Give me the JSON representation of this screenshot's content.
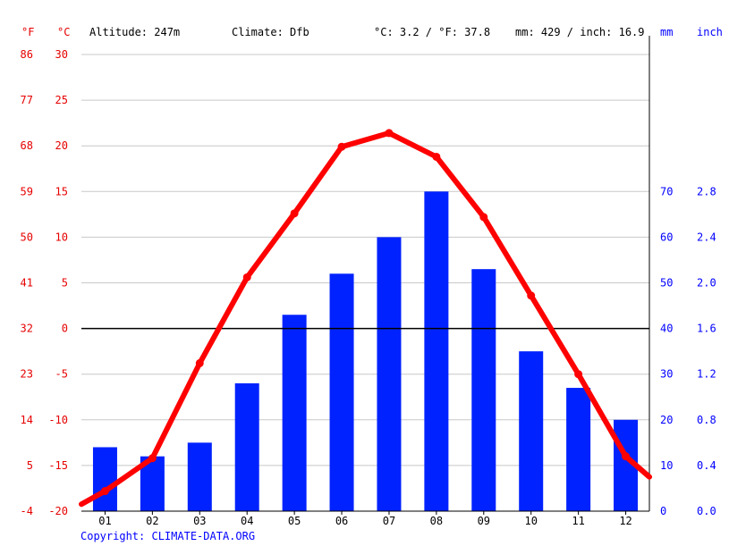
{
  "header": {
    "unit_f": "°F",
    "unit_c": "°C",
    "altitude": "Altitude: 247m",
    "climate": "Climate: Dfb",
    "avg_temp": "°C: 3.2 / °F: 37.8",
    "precip_total": "mm: 429 / inch: 16.9",
    "unit_mm": "mm",
    "unit_inch": "inch"
  },
  "copyright": "Copyright: CLIMATE-DATA.ORG",
  "colors": {
    "temperature": "#ff0000",
    "precipitation": "#0022ff",
    "left_axis": "#e60000",
    "right_axis": "#0000ff"
  },
  "chart_data": {
    "type": "bar",
    "categories": [
      "01",
      "02",
      "03",
      "04",
      "05",
      "06",
      "07",
      "08",
      "09",
      "10",
      "11",
      "12"
    ],
    "series": [
      {
        "type": "bar",
        "axis": "precipitation_mm",
        "values": [
          14,
          12,
          15,
          28,
          43,
          52,
          60,
          70,
          53,
          35,
          27,
          20
        ]
      },
      {
        "type": "line",
        "axis": "temperature_c",
        "values": [
          -17.8,
          -14.2,
          -3.8,
          5.6,
          12.6,
          19.9,
          21.4,
          18.8,
          12.2,
          3.6,
          -5.0,
          -14.0
        ]
      }
    ],
    "temperature_axis": {
      "ylim": [
        -20,
        30
      ],
      "ticks_c": [
        "30",
        "25",
        "20",
        "15",
        "10",
        "5",
        "0",
        "-5",
        "-10",
        "-15",
        "-20"
      ],
      "ticks_f": [
        "86",
        "77",
        "68",
        "59",
        "50",
        "41",
        "32",
        "23",
        "14",
        "5",
        "-4"
      ]
    },
    "precipitation_axis": {
      "ylim": [
        0,
        100
      ],
      "ticks_mm": [
        "70",
        "60",
        "50",
        "40",
        "30",
        "20",
        "10",
        "0"
      ],
      "ticks_inch": [
        "2.8",
        "2.4",
        "2.0",
        "1.6",
        "1.2",
        "0.8",
        "0.4",
        "0.0"
      ]
    },
    "grid": true
  }
}
